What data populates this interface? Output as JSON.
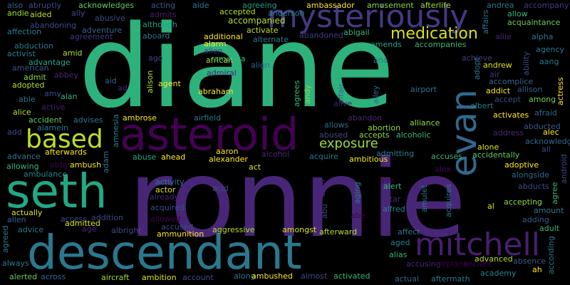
{
  "background": "#000000",
  "words": [
    {
      "text": "diane",
      "color": "#2db27d"
    },
    {
      "text": "ronnie",
      "color": "#482677"
    },
    {
      "text": "descendant",
      "color": "#2a788e"
    },
    {
      "text": "seth",
      "color": "#22a884"
    },
    {
      "text": "asteroid",
      "color": "#440154"
    },
    {
      "text": "mysteriously",
      "color": "#443983"
    },
    {
      "text": "evan",
      "color": "#31688e"
    },
    {
      "text": "mitchell",
      "color": "#481f70"
    },
    {
      "text": "based",
      "color": "#bddf26"
    },
    {
      "text": "medication",
      "color": "#d8e219"
    },
    {
      "text": "exposure",
      "color": "#a0da39"
    },
    {
      "text": "accompanied",
      "color": "#b5de2b"
    },
    {
      "text": "also",
      "color": "#31688e"
    },
    {
      "text": "abruptly",
      "color": "#3e4a89"
    },
    {
      "text": "acknowledges",
      "color": "#65cb5e"
    },
    {
      "text": "acting",
      "color": "#38598c"
    },
    {
      "text": "aide",
      "color": "#2a788e"
    },
    {
      "text": "agreeing",
      "color": "#1f9e89"
    },
    {
      "text": "ambassador",
      "color": "#fde725"
    },
    {
      "text": "amusement",
      "color": "#86d549"
    },
    {
      "text": "afterlife",
      "color": "#a0da39"
    },
    {
      "text": "andrea",
      "color": "#2a788e"
    },
    {
      "text": "accompany",
      "color": "#443983"
    },
    {
      "text": "andie",
      "color": "#a0da39"
    },
    {
      "text": "ally",
      "color": "#3e4a89"
    },
    {
      "text": "aided",
      "color": "#bddf26"
    },
    {
      "text": "abusive",
      "color": "#3e4a89"
    },
    {
      "text": "admits",
      "color": "#481f70"
    },
    {
      "text": "accepted",
      "color": "#b5de2b"
    },
    {
      "text": "anderson",
      "color": "#26828e"
    },
    {
      "text": "allow",
      "color": "#35b779"
    },
    {
      "text": "affection",
      "color": "#26828e"
    },
    {
      "text": "abandoning",
      "color": "#3e4a89"
    },
    {
      "text": "adventure",
      "color": "#31688e"
    },
    {
      "text": "although",
      "color": "#1f9e89"
    },
    {
      "text": "acquaintance",
      "color": "#6ece58"
    },
    {
      "text": "agreement",
      "color": "#443983"
    },
    {
      "text": "aboard",
      "color": "#2a788e"
    },
    {
      "text": "additional",
      "color": "#fde725"
    },
    {
      "text": "activate",
      "color": "#bddf26"
    },
    {
      "text": "abandoned",
      "color": "#443983"
    },
    {
      "text": "abigail",
      "color": "#35b779"
    },
    {
      "text": "affairs",
      "color": "#2a788e"
    },
    {
      "text": "allie",
      "color": "#482677"
    },
    {
      "text": "alpha",
      "color": "#2a788e"
    },
    {
      "text": "abduction",
      "color": "#2a788e"
    },
    {
      "text": "alarm",
      "color": "#fde725"
    },
    {
      "text": "alternate",
      "color": "#2a788e"
    },
    {
      "text": "amends",
      "color": "#20a486"
    },
    {
      "text": "accompanies",
      "color": "#35b779"
    },
    {
      "text": "activist",
      "color": "#26828e"
    },
    {
      "text": "amid",
      "color": "#b5de2b"
    },
    {
      "text": "alien",
      "color": "#443983"
    },
    {
      "text": "agency",
      "color": "#2a788e"
    },
    {
      "text": "advantage",
      "color": "#22a884"
    },
    {
      "text": "african",
      "color": "#bddf26"
    },
    {
      "text": "american",
      "color": "#38598c"
    },
    {
      "text": "ago",
      "color": "#414487"
    },
    {
      "text": "align",
      "color": "#31688e"
    },
    {
      "text": "ana",
      "color": "#2a788e"
    },
    {
      "text": "achieve",
      "color": "#443983"
    },
    {
      "text": "ability",
      "color": "#3e4a89"
    },
    {
      "text": "aang",
      "color": "#2a788e"
    },
    {
      "text": "admit",
      "color": "#90d743"
    },
    {
      "text": "abbey",
      "color": "#482677"
    },
    {
      "text": "admiral",
      "color": "#482677"
    },
    {
      "text": "america",
      "color": "#35b779"
    },
    {
      "text": "adopt",
      "color": "#2a788e"
    },
    {
      "text": "andrew",
      "color": "#d8e219"
    },
    {
      "text": "air",
      "color": "#443983"
    },
    {
      "text": "adopted",
      "color": "#b5de2b"
    },
    {
      "text": "aid",
      "color": "#31688e"
    },
    {
      "text": "alison",
      "color": "#b5de2b"
    },
    {
      "text": "agent",
      "color": "#fde725"
    },
    {
      "text": "accomplice",
      "color": "#31688e"
    },
    {
      "text": "ad",
      "color": "#482677"
    },
    {
      "text": "abraham",
      "color": "#fde725"
    },
    {
      "text": "addict",
      "color": "#fde725"
    },
    {
      "text": "allison",
      "color": "#38598c"
    },
    {
      "text": "actress",
      "color": "#fde725"
    },
    {
      "text": "able",
      "color": "#2a788e"
    },
    {
      "text": "amy",
      "color": "#3e4a89"
    },
    {
      "text": "alan",
      "color": "#35b779"
    },
    {
      "text": "agrees",
      "color": "#35b779"
    },
    {
      "text": "andy",
      "color": "#90d743"
    },
    {
      "text": "affair",
      "color": "#31688e"
    },
    {
      "text": "alley",
      "color": "#31688e"
    },
    {
      "text": "airport",
      "color": "#2a788e"
    },
    {
      "text": "accept",
      "color": "#3e4a89"
    },
    {
      "text": "among",
      "color": "#6ece58"
    },
    {
      "text": "active",
      "color": "#481f70"
    },
    {
      "text": "alive",
      "color": "#481f70"
    },
    {
      "text": "albert",
      "color": "#26828e"
    },
    {
      "text": "alice",
      "color": "#b5de2b"
    },
    {
      "text": "activates",
      "color": "#fde725"
    },
    {
      "text": "afraid",
      "color": "#31688e"
    },
    {
      "text": "accident",
      "color": "#65cb5e"
    },
    {
      "text": "advises",
      "color": "#2a788e"
    },
    {
      "text": "ambrose",
      "color": "#fde725"
    },
    {
      "text": "airfield",
      "color": "#2a788e"
    },
    {
      "text": "abandon",
      "color": "#482677"
    },
    {
      "text": "alamein",
      "color": "#2a788e"
    },
    {
      "text": "alliance",
      "color": "#90d743"
    },
    {
      "text": "abducted",
      "color": "#38598c"
    },
    {
      "text": "add",
      "color": "#3e4a89"
    },
    {
      "text": "allows",
      "color": "#31688e"
    },
    {
      "text": "abortion",
      "color": "#90d743"
    },
    {
      "text": "alec",
      "color": "#fde725"
    },
    {
      "text": "address",
      "color": "#482677"
    },
    {
      "text": "acknowledge",
      "color": "#31688e"
    },
    {
      "text": "abused",
      "color": "#3e4a89"
    },
    {
      "text": "accepts",
      "color": "#90d743"
    },
    {
      "text": "alcoholic",
      "color": "#35b779"
    },
    {
      "text": "all",
      "color": "#3e4a89"
    },
    {
      "text": "afterwards",
      "color": "#fde725"
    },
    {
      "text": "advance",
      "color": "#2a788e"
    },
    {
      "text": "adam",
      "color": "#2a788e"
    },
    {
      "text": "amnesia",
      "color": "#26828e"
    },
    {
      "text": "alone",
      "color": "#d8e219"
    },
    {
      "text": "aaron",
      "color": "#fde725"
    },
    {
      "text": "alcohol",
      "color": "#482677"
    },
    {
      "text": "admitting",
      "color": "#26828e"
    },
    {
      "text": "accuses",
      "color": "#35b779"
    },
    {
      "text": "accidentally",
      "color": "#65cb5e"
    },
    {
      "text": "allowing",
      "color": "#35b779"
    },
    {
      "text": "abby",
      "color": "#440154"
    },
    {
      "text": "ambush",
      "color": "#fde725"
    },
    {
      "text": "abuse",
      "color": "#22a884"
    },
    {
      "text": "ahead",
      "color": "#fde725"
    },
    {
      "text": "alexander",
      "color": "#fde725"
    },
    {
      "text": "acquire",
      "color": "#2a788e"
    },
    {
      "text": "ambitious",
      "color": "#fde725"
    },
    {
      "text": "adoptive",
      "color": "#fde725"
    },
    {
      "text": "android",
      "color": "#3e4a89"
    },
    {
      "text": "ambulance",
      "color": "#26828e"
    },
    {
      "text": "act",
      "color": "#d8e219"
    },
    {
      "text": "alex",
      "color": "#440154"
    },
    {
      "text": "alongside",
      "color": "#31688e"
    },
    {
      "text": "activity",
      "color": "#2a788e"
    },
    {
      "text": "actor",
      "color": "#d8e219"
    },
    {
      "text": "acid",
      "color": "#3e4a89"
    },
    {
      "text": "aim",
      "color": "#440154"
    },
    {
      "text": "alert",
      "color": "#35b779"
    },
    {
      "text": "abducts",
      "color": "#3e4a89"
    },
    {
      "text": "agree",
      "color": "#35b779"
    },
    {
      "text": "already",
      "color": "#482677"
    },
    {
      "text": "alter",
      "color": "#482677"
    },
    {
      "text": "aging",
      "color": "#2a788e"
    },
    {
      "text": "altar",
      "color": "#482677"
    },
    {
      "text": "amulet",
      "color": "#2a788e"
    },
    {
      "text": "acquires",
      "color": "#2a788e"
    },
    {
      "text": "actually",
      "color": "#d8e219"
    },
    {
      "text": "acquired",
      "color": "#3e4a89"
    },
    {
      "text": "abu",
      "color": "#3e4a89"
    },
    {
      "text": "action",
      "color": "#482677"
    },
    {
      "text": "alfred",
      "color": "#26828e"
    },
    {
      "text": "al",
      "color": "#d8e219"
    },
    {
      "text": "accepting",
      "color": "#90d743"
    },
    {
      "text": "amount",
      "color": "#2a788e"
    },
    {
      "text": "access",
      "color": "#3e4a89"
    },
    {
      "text": "addition",
      "color": "#3e4a89"
    },
    {
      "text": "allowed",
      "color": "#440154"
    },
    {
      "text": "abe",
      "color": "#440154"
    },
    {
      "text": "adding",
      "color": "#38598c"
    },
    {
      "text": "allen",
      "color": "#31688e"
    },
    {
      "text": "admitted",
      "color": "#d8e219"
    },
    {
      "text": "accused",
      "color": "#3e4a89"
    },
    {
      "text": "adult",
      "color": "#35b779"
    },
    {
      "text": "advice",
      "color": "#2a788e"
    },
    {
      "text": "age",
      "color": "#482677"
    },
    {
      "text": "albright",
      "color": "#3e4a89"
    },
    {
      "text": "aggressive",
      "color": "#b5de2b"
    },
    {
      "text": "amongst",
      "color": "#d8e219"
    },
    {
      "text": "affect",
      "color": "#2a788e"
    },
    {
      "text": "agreed",
      "color": "#2a788e"
    },
    {
      "text": "ammunition",
      "color": "#fde725"
    },
    {
      "text": "afterward",
      "color": "#b5de2b"
    },
    {
      "text": "aged",
      "color": "#26828e"
    },
    {
      "text": "alias",
      "color": "#35b779"
    },
    {
      "text": "advanced",
      "color": "#b5de2b"
    },
    {
      "text": "absence",
      "color": "#38598c"
    },
    {
      "text": "always",
      "color": "#2a788e"
    },
    {
      "text": "accusing",
      "color": "#482677"
    },
    {
      "text": "airplane",
      "color": "#440154"
    },
    {
      "text": "ancient",
      "color": "#440154"
    },
    {
      "text": "according",
      "color": "#2a788e"
    },
    {
      "text": "ah",
      "color": "#fde725"
    },
    {
      "text": "alerted",
      "color": "#65cb5e"
    },
    {
      "text": "across",
      "color": "#31688e"
    },
    {
      "text": "aircraft",
      "color": "#a0da39"
    },
    {
      "text": "ambition",
      "color": "#d8e219"
    },
    {
      "text": "account",
      "color": "#3e4a89"
    },
    {
      "text": "along",
      "color": "#2a788e"
    },
    {
      "text": "ambushed",
      "color": "#fde725"
    },
    {
      "text": "almost",
      "color": "#3e4a89"
    },
    {
      "text": "activated",
      "color": "#35b779"
    },
    {
      "text": "academy",
      "color": "#26828e"
    },
    {
      "text": "actual",
      "color": "#31688e"
    },
    {
      "text": "aftermath",
      "color": "#2a788e"
    }
  ]
}
